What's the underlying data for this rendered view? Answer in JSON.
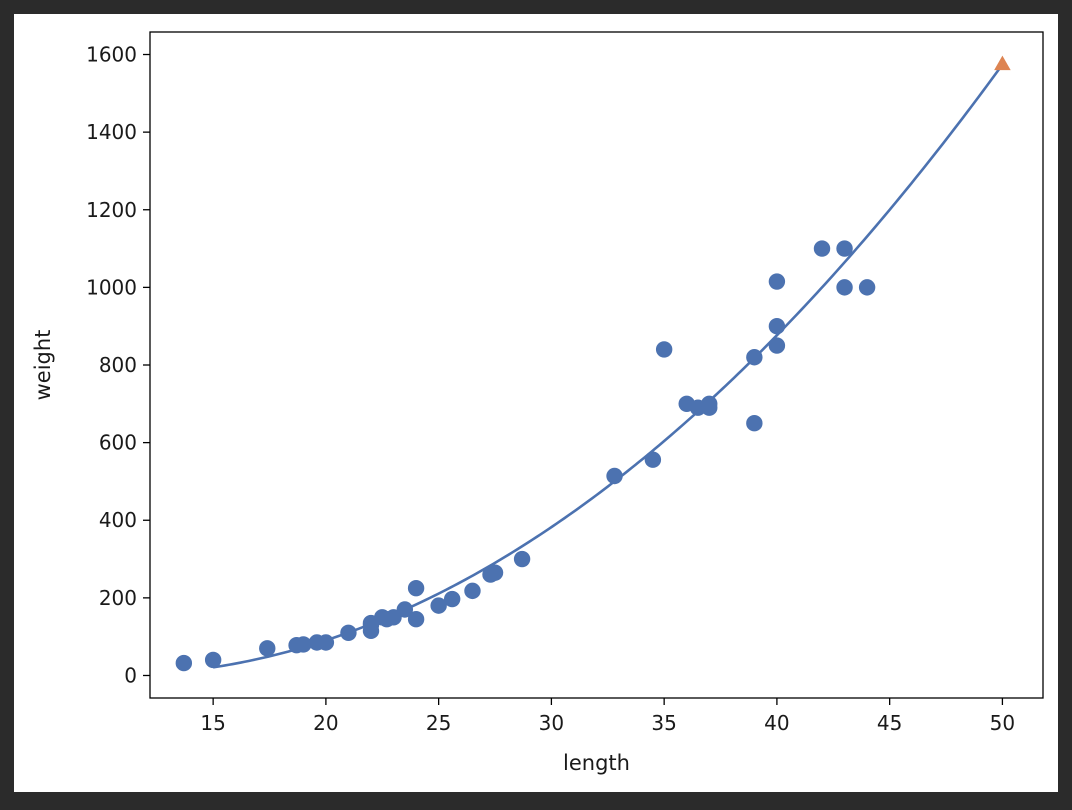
{
  "chart_data": {
    "type": "scatter",
    "title": "",
    "xlabel": "length",
    "ylabel": "weight",
    "xlim": [
      12.2,
      51.8
    ],
    "ylim": [
      -58,
      1658
    ],
    "xticks": [
      15,
      20,
      25,
      30,
      35,
      40,
      45,
      50
    ],
    "yticks": [
      0,
      200,
      400,
      600,
      800,
      1000,
      1200,
      1400,
      1600
    ],
    "grid": false,
    "legend": "none",
    "colors": {
      "points": "#4c72b0",
      "curve": "#4c72b0",
      "prediction": "#dd8452"
    },
    "series": [
      {
        "kind": "scatter",
        "x": [
          13.7,
          15.0,
          17.4,
          18.7,
          19.0,
          19.6,
          20.0,
          21.0,
          22.0,
          22.0,
          22.0,
          22.5,
          22.7,
          23.0,
          23.5,
          24.0,
          24.0,
          25.0,
          25.6,
          26.5,
          27.3,
          27.5,
          28.7,
          32.8,
          34.5,
          35.0,
          36.0,
          36.5,
          37.0,
          37.0,
          39.0,
          39.0,
          40.0,
          40.0,
          40.0,
          42.0,
          43.0,
          43.0,
          44.0
        ],
        "y": [
          32,
          40,
          70,
          78,
          80,
          85,
          85,
          110,
          115,
          130,
          135,
          150,
          145,
          150,
          170,
          225,
          145,
          180,
          197,
          218,
          260,
          265,
          300,
          514,
          556,
          840,
          700,
          690,
          690,
          700,
          820,
          650,
          850,
          900,
          1015,
          1100,
          1000,
          1100,
          1000
        ]
      },
      {
        "kind": "curve",
        "fit": {
          "a": 1.01433211,
          "b": -21.55792498,
          "c": 116.0502107
        },
        "x_range": [
          15,
          50
        ]
      },
      {
        "kind": "marker",
        "marker": "triangle",
        "x": [
          50
        ],
        "y": [
          1574
        ]
      }
    ]
  }
}
